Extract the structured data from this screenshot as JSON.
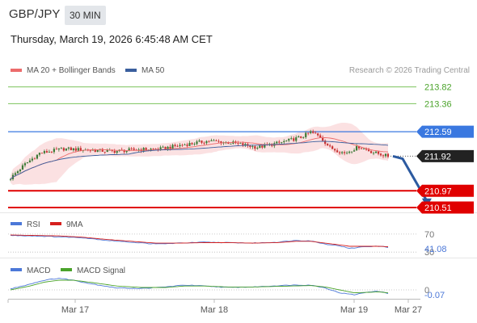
{
  "header": {
    "pair": "GBP/JPY",
    "timeframe": "30 MIN",
    "datetime": "Thursday, March 19, 2026 6:45:48 AM CET"
  },
  "colors": {
    "ma20": "#ec6b6b",
    "ma50": "#3a5f9e",
    "bollinger_fill": "#f9d7d8",
    "resistance": "#7cc35c",
    "pivot": "#3a78e0",
    "support": "#e00000",
    "arrow": "#2c5aa0",
    "candle_up": "#3d7a37",
    "candle_down": "#c83232",
    "rsi": "#4c78d8",
    "rsi_ma": "#d6201e",
    "macd": "#4c78d8",
    "macd_signal": "#4aa32a"
  },
  "chart_data": [
    {
      "type": "candlestick",
      "legend": [
        {
          "name": "MA 20 + Bollinger Bands",
          "color": "#ec6b6b"
        },
        {
          "name": "MA 50",
          "color": "#3a5f9e"
        }
      ],
      "watermark": "Research © 2026 Trading Central",
      "x_ticks": [
        "Mar 17",
        "Mar 18",
        "Mar 19",
        "Mar 27"
      ],
      "ylim": [
        210.4,
        214.1
      ],
      "levels": [
        {
          "value": 213.82,
          "label": "213.82",
          "kind": "resistance"
        },
        {
          "value": 213.36,
          "label": "213.36",
          "kind": "resistance"
        },
        {
          "value": 212.59,
          "label": "212.59",
          "kind": "pivot"
        },
        {
          "value": 211.92,
          "label": "211.92",
          "kind": "last"
        },
        {
          "value": 210.97,
          "label": "210.97",
          "kind": "support"
        },
        {
          "value": 210.51,
          "label": "210.51",
          "kind": "support"
        }
      ],
      "anchors": [
        [
          0,
          211.32
        ],
        [
          6,
          211.7
        ],
        [
          12,
          212.0
        ],
        [
          22,
          212.12
        ],
        [
          32,
          212.09
        ],
        [
          42,
          212.05
        ],
        [
          52,
          212.1
        ],
        [
          62,
          212.12
        ],
        [
          72,
          212.24
        ],
        [
          82,
          212.34
        ],
        [
          92,
          212.28
        ],
        [
          102,
          212.16
        ],
        [
          112,
          212.3
        ],
        [
          120,
          212.44
        ],
        [
          124,
          212.58
        ],
        [
          128,
          212.45
        ],
        [
          132,
          212.15
        ],
        [
          138,
          212.0
        ],
        [
          144,
          212.18
        ],
        [
          150,
          212.02
        ],
        [
          156,
          211.92
        ]
      ],
      "n_candles": 157,
      "arrow": {
        "from": [
          158,
          211.92
        ],
        "to": [
          172,
          210.56
        ]
      }
    },
    {
      "type": "line",
      "legend": [
        {
          "name": "RSI",
          "color": "#4c78d8"
        },
        {
          "name": "9MA",
          "color": "#d6201e"
        }
      ],
      "ylim": [
        25,
        77
      ],
      "levels": [
        {
          "value": 70,
          "label": "70"
        },
        {
          "value": 30,
          "label": "30"
        }
      ],
      "last_label": "41.08",
      "series": [
        {
          "name": "RSI",
          "points": [
            [
              0,
              67
            ],
            [
              10,
              66
            ],
            [
              20,
              64
            ],
            [
              30,
              62
            ],
            [
              40,
              56
            ],
            [
              50,
              52
            ],
            [
              60,
              48
            ],
            [
              70,
              50
            ],
            [
              80,
              52
            ],
            [
              90,
              51
            ],
            [
              100,
              50
            ],
            [
              110,
              52
            ],
            [
              118,
              56
            ],
            [
              124,
              55
            ],
            [
              130,
              48
            ],
            [
              136,
              44
            ],
            [
              140,
              38
            ],
            [
              146,
              42
            ],
            [
              152,
              43
            ],
            [
              156,
              41
            ]
          ]
        },
        {
          "name": "9MA",
          "points": [
            [
              0,
              68
            ],
            [
              10,
              67
            ],
            [
              20,
              66
            ],
            [
              30,
              63
            ],
            [
              40,
              58
            ],
            [
              50,
              54
            ],
            [
              60,
              50
            ],
            [
              70,
              50
            ],
            [
              80,
              51
            ],
            [
              90,
              51
            ],
            [
              100,
              50
            ],
            [
              110,
              51
            ],
            [
              118,
              54
            ],
            [
              124,
              54
            ],
            [
              130,
              50
            ],
            [
              136,
              46
            ],
            [
              140,
              43
            ],
            [
              146,
              43
            ],
            [
              152,
              43
            ],
            [
              156,
              42
            ]
          ]
        }
      ]
    },
    {
      "type": "line",
      "legend": [
        {
          "name": "MACD",
          "color": "#4c78d8"
        },
        {
          "name": "MACD Signal",
          "color": "#4aa32a"
        }
      ],
      "ylim": [
        -0.15,
        0.3
      ],
      "levels": [
        {
          "value": 0,
          "label": "0"
        }
      ],
      "last_label": "-0.07",
      "series": [
        {
          "name": "MACD",
          "points": [
            [
              0,
              0.02
            ],
            [
              8,
              0.12
            ],
            [
              14,
              0.2
            ],
            [
              20,
              0.24
            ],
            [
              26,
              0.2
            ],
            [
              34,
              0.12
            ],
            [
              44,
              0.04
            ],
            [
              54,
              0.03
            ],
            [
              64,
              0.06
            ],
            [
              72,
              0.1
            ],
            [
              80,
              0.08
            ],
            [
              90,
              0.05
            ],
            [
              100,
              0.06
            ],
            [
              108,
              0.08
            ],
            [
              116,
              0.1
            ],
            [
              124,
              0.1
            ],
            [
              130,
              0.04
            ],
            [
              136,
              -0.06
            ],
            [
              142,
              -0.1
            ],
            [
              148,
              -0.04
            ],
            [
              152,
              -0.03
            ],
            [
              156,
              -0.07
            ]
          ]
        },
        {
          "name": "MACD Signal",
          "points": [
            [
              0,
              0.0
            ],
            [
              8,
              0.08
            ],
            [
              14,
              0.16
            ],
            [
              20,
              0.2
            ],
            [
              26,
              0.2
            ],
            [
              34,
              0.15
            ],
            [
              44,
              0.08
            ],
            [
              54,
              0.05
            ],
            [
              64,
              0.05
            ],
            [
              72,
              0.08
            ],
            [
              80,
              0.08
            ],
            [
              90,
              0.06
            ],
            [
              100,
              0.06
            ],
            [
              108,
              0.07
            ],
            [
              116,
              0.08
            ],
            [
              124,
              0.09
            ],
            [
              130,
              0.06
            ],
            [
              136,
              0.0
            ],
            [
              142,
              -0.06
            ],
            [
              148,
              -0.05
            ],
            [
              152,
              -0.04
            ],
            [
              156,
              -0.06
            ]
          ]
        }
      ]
    }
  ]
}
